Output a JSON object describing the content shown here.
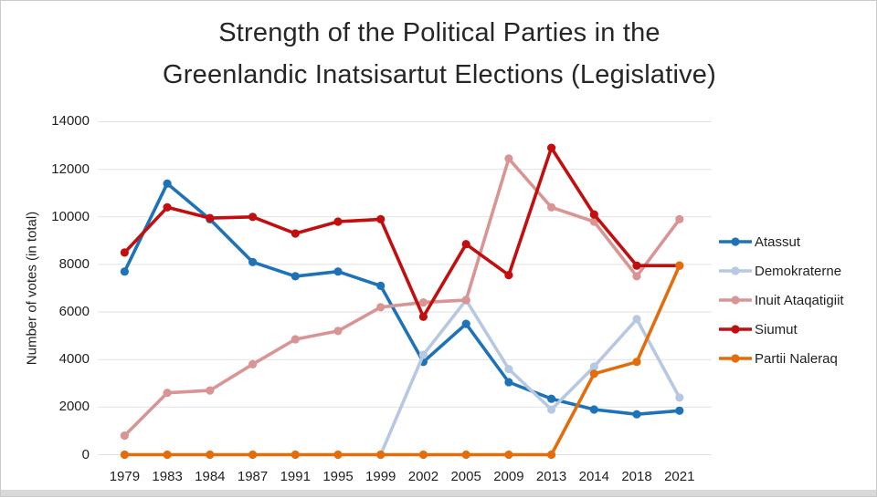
{
  "figure": {
    "background_color": "#ffffff",
    "border_color": "#cbcbcb"
  },
  "chart_data": {
    "type": "line",
    "title": "Strength of the Political Parties in the Greenlandic Inatsisartut Elections (Legislative)",
    "title_lines": [
      "Strength of the Political Parties in the",
      "Greenlandic Inatsisartut Elections (Legislative)"
    ],
    "xlabel": "",
    "ylabel": "Number of votes (in total)",
    "ylim": [
      0,
      14000
    ],
    "yticks": [
      0,
      2000,
      4000,
      6000,
      8000,
      10000,
      12000,
      14000
    ],
    "grid": "horizontal-only",
    "gridline_color": "#e2e2e2",
    "text_color": "#1f1f1f",
    "legend_position": "right",
    "marker": "circle",
    "categories": [
      "1979",
      "1983",
      "1984",
      "1987",
      "1991",
      "1995",
      "1999",
      "2002",
      "2005",
      "2009",
      "2013",
      "2014",
      "2018",
      "2021"
    ],
    "series": [
      {
        "name": "Atassut",
        "color": "#1e73b8",
        "values": [
          7700,
          11400,
          9900,
          8100,
          7500,
          7700,
          7100,
          3900,
          5500,
          3050,
          2350,
          1900,
          1700,
          1850
        ]
      },
      {
        "name": "Demokraterne",
        "color": "#b7c9e2",
        "values": [
          null,
          null,
          null,
          null,
          null,
          null,
          0,
          4200,
          6500,
          3600,
          1900,
          3700,
          5700,
          2400
        ]
      },
      {
        "name": "Inuit Ataqatigiit",
        "color": "#d99594",
        "values": [
          800,
          2600,
          2700,
          3800,
          4850,
          5200,
          6200,
          6400,
          6500,
          12450,
          10400,
          9800,
          7500,
          9900
        ]
      },
      {
        "name": "Siumut",
        "color": "#c20e0e",
        "values": [
          8500,
          10400,
          9950,
          10000,
          9300,
          9800,
          9900,
          5800,
          8850,
          7550,
          12900,
          10100,
          7950,
          7950
        ]
      },
      {
        "name": "Partii Naleraq",
        "color": "#e36d0c",
        "values": [
          0,
          0,
          0,
          0,
          0,
          0,
          0,
          0,
          0,
          0,
          0,
          3400,
          3900,
          7950
        ]
      }
    ]
  }
}
